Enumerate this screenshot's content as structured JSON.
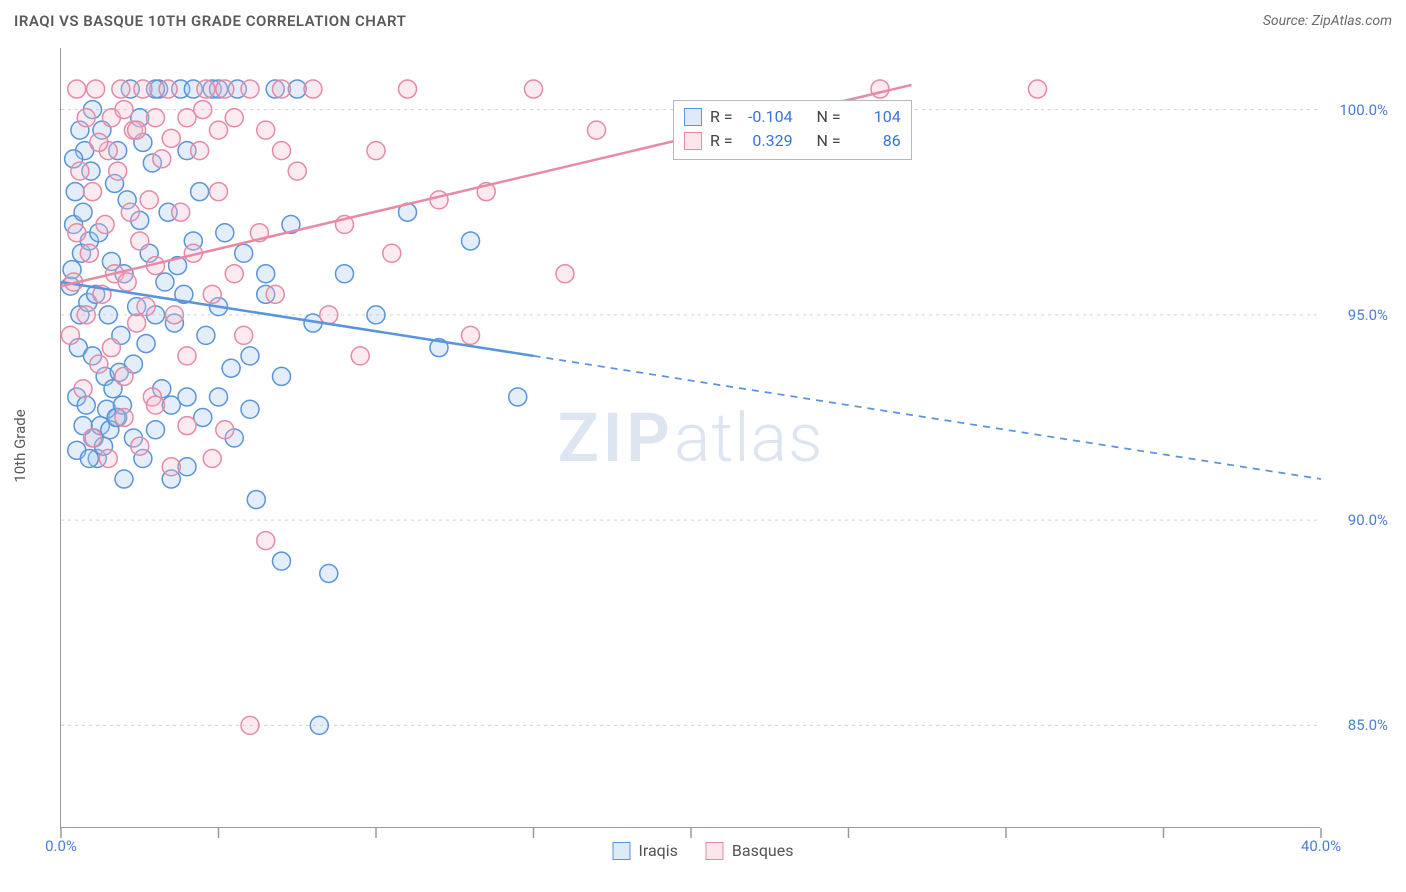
{
  "title": "IRAQI VS BASQUE 10TH GRADE CORRELATION CHART",
  "source": "Source: ZipAtlas.com",
  "y_axis_label": "10th Grade",
  "watermark_bold": "ZIP",
  "watermark_light": "atlas",
  "chart": {
    "type": "scatter",
    "xlim": [
      0,
      40
    ],
    "ylim": [
      82.5,
      101.5
    ],
    "x_ticks": [
      0,
      5,
      10,
      15,
      20,
      25,
      30,
      35,
      40
    ],
    "x_tick_labels": {
      "0": "0.0%",
      "40": "40.0%"
    },
    "y_gridlines": [
      85,
      90,
      95,
      100
    ],
    "y_tick_labels": {
      "85": "85.0%",
      "90": "90.0%",
      "95": "95.0%",
      "100": "100.0%"
    },
    "background_color": "#ffffff",
    "grid_color": "#d0d0d0",
    "axis_color": "#9a9a9a",
    "tick_label_color": "#4a7fd6",
    "marker_radius": 9,
    "marker_stroke_width": 1.5,
    "marker_fill_opacity": 0.32,
    "series": [
      {
        "name": "Iraqis",
        "color_stroke": "#5a94db",
        "color_fill": "#a9cbee",
        "R": -0.104,
        "N": 104,
        "trend": {
          "x1": 0,
          "y1": 95.8,
          "x2": 40,
          "y2": 91.0,
          "solid_until_x": 15,
          "line_width": 2.5
        },
        "points": [
          [
            0.3,
            95.7
          ],
          [
            0.35,
            96.1
          ],
          [
            0.4,
            97.2
          ],
          [
            0.45,
            98.0
          ],
          [
            0.5,
            93.0
          ],
          [
            0.55,
            94.2
          ],
          [
            0.6,
            95.0
          ],
          [
            0.65,
            96.5
          ],
          [
            0.7,
            97.5
          ],
          [
            0.75,
            99.0
          ],
          [
            0.8,
            92.8
          ],
          [
            0.85,
            95.3
          ],
          [
            0.9,
            96.8
          ],
          [
            0.95,
            98.5
          ],
          [
            1.0,
            94.0
          ],
          [
            1.1,
            95.5
          ],
          [
            1.2,
            97.0
          ],
          [
            1.3,
            99.5
          ],
          [
            1.4,
            93.5
          ],
          [
            1.5,
            95.0
          ],
          [
            1.6,
            96.3
          ],
          [
            1.7,
            98.2
          ],
          [
            1.8,
            92.5
          ],
          [
            1.9,
            94.5
          ],
          [
            2.0,
            96.0
          ],
          [
            2.1,
            97.8
          ],
          [
            2.2,
            100.5
          ],
          [
            2.3,
            93.8
          ],
          [
            2.4,
            95.2
          ],
          [
            2.5,
            97.3
          ],
          [
            2.6,
            99.2
          ],
          [
            2.7,
            94.3
          ],
          [
            2.8,
            96.5
          ],
          [
            2.9,
            98.7
          ],
          [
            3.0,
            95.0
          ],
          [
            3.1,
            100.5
          ],
          [
            3.2,
            93.2
          ],
          [
            3.3,
            95.8
          ],
          [
            3.4,
            97.5
          ],
          [
            3.5,
            91.0
          ],
          [
            3.6,
            94.8
          ],
          [
            3.7,
            96.2
          ],
          [
            3.8,
            100.5
          ],
          [
            3.9,
            95.5
          ],
          [
            4.0,
            93.0
          ],
          [
            4.2,
            96.8
          ],
          [
            4.4,
            98.0
          ],
          [
            4.6,
            94.5
          ],
          [
            4.8,
            100.5
          ],
          [
            5.0,
            95.2
          ],
          [
            5.2,
            97.0
          ],
          [
            5.4,
            93.7
          ],
          [
            5.6,
            100.5
          ],
          [
            5.8,
            96.5
          ],
          [
            6.0,
            94.0
          ],
          [
            6.2,
            90.5
          ],
          [
            6.5,
            95.5
          ],
          [
            6.8,
            100.5
          ],
          [
            7.0,
            93.5
          ],
          [
            7.3,
            97.2
          ],
          [
            7.5,
            100.5
          ],
          [
            8.0,
            94.8
          ],
          [
            8.2,
            85.0
          ],
          [
            8.5,
            88.7
          ],
          [
            9.0,
            96.0
          ],
          [
            10.0,
            95.0
          ],
          [
            11.0,
            97.5
          ],
          [
            12.0,
            94.2
          ],
          [
            13.0,
            96.8
          ],
          [
            14.5,
            93.0
          ],
          [
            1.05,
            92.0
          ],
          [
            1.15,
            91.5
          ],
          [
            1.25,
            92.3
          ],
          [
            1.35,
            91.8
          ],
          [
            1.45,
            92.7
          ],
          [
            1.55,
            92.2
          ],
          [
            1.65,
            93.2
          ],
          [
            1.75,
            92.5
          ],
          [
            1.85,
            93.6
          ],
          [
            1.95,
            92.8
          ],
          [
            0.5,
            91.7
          ],
          [
            0.7,
            92.3
          ],
          [
            0.9,
            91.5
          ],
          [
            2.0,
            91.0
          ],
          [
            2.3,
            92.0
          ],
          [
            2.6,
            91.5
          ],
          [
            3.0,
            92.2
          ],
          [
            3.5,
            92.8
          ],
          [
            4.0,
            91.3
          ],
          [
            4.5,
            92.5
          ],
          [
            5.0,
            93.0
          ],
          [
            5.5,
            92.0
          ],
          [
            6.0,
            92.7
          ],
          [
            4.2,
            100.5
          ],
          [
            3.0,
            100.5
          ],
          [
            2.5,
            99.8
          ],
          [
            1.8,
            99.0
          ],
          [
            1.0,
            100.0
          ],
          [
            0.6,
            99.5
          ],
          [
            0.4,
            98.8
          ],
          [
            7.0,
            89.0
          ],
          [
            6.5,
            96.0
          ],
          [
            5.0,
            100.5
          ],
          [
            4.0,
            99.0
          ]
        ]
      },
      {
        "name": "Basques",
        "color_stroke": "#e68aa5",
        "color_fill": "#f4c0cf",
        "R": 0.329,
        "N": 86,
        "trend": {
          "x1": 0,
          "y1": 95.7,
          "x2": 27,
          "y2": 100.6,
          "solid_until_x": 27,
          "line_width": 2.5
        },
        "points": [
          [
            0.3,
            94.5
          ],
          [
            0.4,
            95.8
          ],
          [
            0.5,
            97.0
          ],
          [
            0.6,
            98.5
          ],
          [
            0.7,
            93.2
          ],
          [
            0.8,
            95.0
          ],
          [
            0.9,
            96.5
          ],
          [
            1.0,
            98.0
          ],
          [
            1.1,
            100.5
          ],
          [
            1.2,
            93.8
          ],
          [
            1.3,
            95.5
          ],
          [
            1.4,
            97.2
          ],
          [
            1.5,
            99.0
          ],
          [
            1.6,
            94.2
          ],
          [
            1.7,
            96.0
          ],
          [
            1.8,
            98.5
          ],
          [
            1.9,
            100.5
          ],
          [
            2.0,
            93.5
          ],
          [
            2.1,
            95.8
          ],
          [
            2.2,
            97.5
          ],
          [
            2.3,
            99.5
          ],
          [
            2.4,
            94.8
          ],
          [
            2.5,
            96.8
          ],
          [
            2.6,
            100.5
          ],
          [
            2.7,
            95.2
          ],
          [
            2.8,
            97.8
          ],
          [
            2.9,
            93.0
          ],
          [
            3.0,
            96.2
          ],
          [
            3.2,
            98.8
          ],
          [
            3.4,
            100.5
          ],
          [
            3.6,
            95.0
          ],
          [
            3.8,
            97.5
          ],
          [
            4.0,
            94.0
          ],
          [
            4.2,
            96.5
          ],
          [
            4.4,
            99.0
          ],
          [
            4.6,
            100.5
          ],
          [
            4.8,
            95.5
          ],
          [
            5.0,
            98.0
          ],
          [
            5.2,
            100.5
          ],
          [
            5.5,
            96.0
          ],
          [
            5.8,
            94.5
          ],
          [
            6.0,
            100.5
          ],
          [
            6.3,
            97.0
          ],
          [
            6.5,
            89.5
          ],
          [
            6.8,
            95.5
          ],
          [
            7.0,
            100.5
          ],
          [
            7.5,
            98.5
          ],
          [
            8.0,
            100.5
          ],
          [
            8.5,
            95.0
          ],
          [
            9.0,
            97.2
          ],
          [
            9.5,
            94.0
          ],
          [
            10.0,
            99.0
          ],
          [
            10.5,
            96.5
          ],
          [
            11.0,
            100.5
          ],
          [
            12.0,
            97.8
          ],
          [
            13.0,
            94.5
          ],
          [
            13.5,
            98.0
          ],
          [
            15.0,
            100.5
          ],
          [
            16.0,
            96.0
          ],
          [
            17.0,
            99.5
          ],
          [
            26.0,
            100.5
          ],
          [
            31.0,
            100.5
          ],
          [
            6.0,
            85.0
          ],
          [
            1.0,
            92.0
          ],
          [
            1.5,
            91.5
          ],
          [
            2.0,
            92.5
          ],
          [
            2.5,
            91.8
          ],
          [
            3.0,
            92.8
          ],
          [
            3.5,
            91.3
          ],
          [
            4.0,
            92.3
          ],
          [
            0.5,
            100.5
          ],
          [
            0.8,
            99.8
          ],
          [
            1.2,
            99.2
          ],
          [
            1.6,
            99.8
          ],
          [
            2.0,
            100.0
          ],
          [
            2.4,
            99.5
          ],
          [
            3.0,
            99.8
          ],
          [
            3.5,
            99.3
          ],
          [
            4.0,
            99.8
          ],
          [
            4.5,
            100.0
          ],
          [
            5.0,
            99.5
          ],
          [
            5.5,
            99.8
          ],
          [
            6.5,
            99.5
          ],
          [
            7.0,
            99.0
          ],
          [
            4.8,
            91.5
          ],
          [
            5.2,
            92.2
          ]
        ]
      }
    ]
  },
  "legend": [
    {
      "label": "Iraqis",
      "stroke": "#5a94db",
      "fill": "#a9cbee"
    },
    {
      "label": "Basques",
      "stroke": "#e68aa5",
      "fill": "#f4c0cf"
    }
  ]
}
